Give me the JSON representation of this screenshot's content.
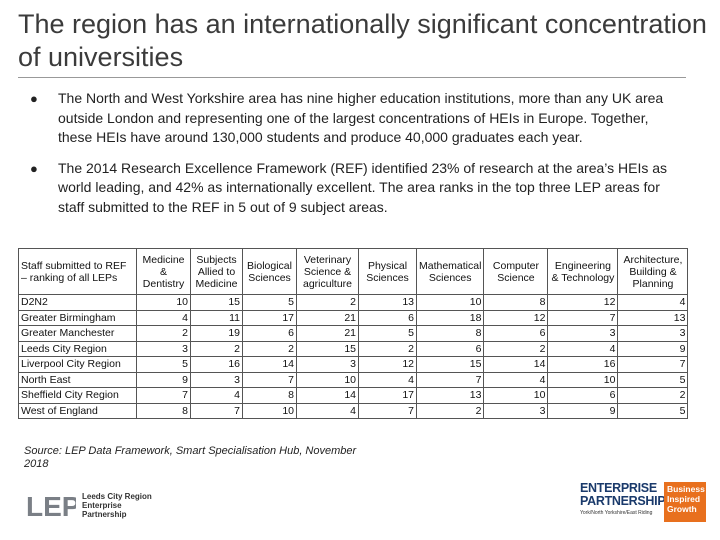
{
  "title": "The region has an internationally significant concentration of universities",
  "bullets": [
    "The North and West Yorkshire area has nine higher education institutions, more than any UK area outside London and representing one of the largest concentrations of HEIs in Europe. Together, these HEIs have around 130,000 students and produce 40,000 graduates each year.",
    "The 2014 Research Excellence Framework (REF) identified 23% of research at the area’s HEIs as world leading, and 42% as internationally excellent. The area ranks in the top three LEP areas for staff submitted to the REF in 5 out of 9 subject areas."
  ],
  "table": {
    "corner": "Staff submitted to REF – ranking of all LEPs",
    "columns": [
      "Medicine & Dentistry",
      "Subjects Allied to Medicine",
      "Biological Sciences",
      "Veterinary Science & agriculture",
      "Physical Sciences",
      "Mathematical Sciences",
      "Computer Science",
      "Engineering & Technology",
      "Architecture, Building & Planning"
    ],
    "rows": [
      {
        "name": "D2N2",
        "values": [
          "10",
          "15",
          "5",
          "2",
          "13",
          "10",
          "8",
          "12",
          "4"
        ]
      },
      {
        "name": "Greater Birmingham",
        "values": [
          "4",
          "11",
          "17",
          "21",
          "6",
          "18",
          "12",
          "7",
          "13"
        ]
      },
      {
        "name": "Greater Manchester",
        "values": [
          "2",
          "19",
          "6",
          "21",
          "5",
          "8",
          "6",
          "3",
          "3"
        ]
      },
      {
        "name": "Leeds City Region",
        "values": [
          "3",
          "2",
          "2",
          "15",
          "2",
          "6",
          "2",
          "4",
          "9"
        ]
      },
      {
        "name": "Liverpool City Region",
        "values": [
          "5",
          "16",
          "14",
          "3",
          "12",
          "15",
          "14",
          "16",
          "7"
        ]
      },
      {
        "name": "North East",
        "values": [
          "9",
          "3",
          "7",
          "10",
          "4",
          "7",
          "4",
          "10",
          "5"
        ]
      },
      {
        "name": "Sheffield City Region",
        "values": [
          "7",
          "4",
          "8",
          "14",
          "17",
          "13",
          "10",
          "6",
          "2"
        ]
      },
      {
        "name": "West of England",
        "values": [
          "8",
          "7",
          "10",
          "4",
          "7",
          "2",
          "3",
          "9",
          "5"
        ]
      }
    ]
  },
  "source": "Source: LEP Data Framework, Smart Specialisation Hub, November 2018",
  "logos": {
    "lep": {
      "mark": "LEP",
      "line1": "Leeds City Region",
      "line2": "Enterprise",
      "line3": "Partnership"
    },
    "ep": {
      "word1": "ENTERPRISE",
      "word2": "PARTNERSHIP",
      "sub": "York/North Yorkshire/East Riding",
      "box": "Business Inspired Growth"
    }
  },
  "colors": {
    "ep_blue": "#1a3a6b",
    "ep_orange": "#e8701e",
    "lep_grey": "#7a7f86"
  }
}
